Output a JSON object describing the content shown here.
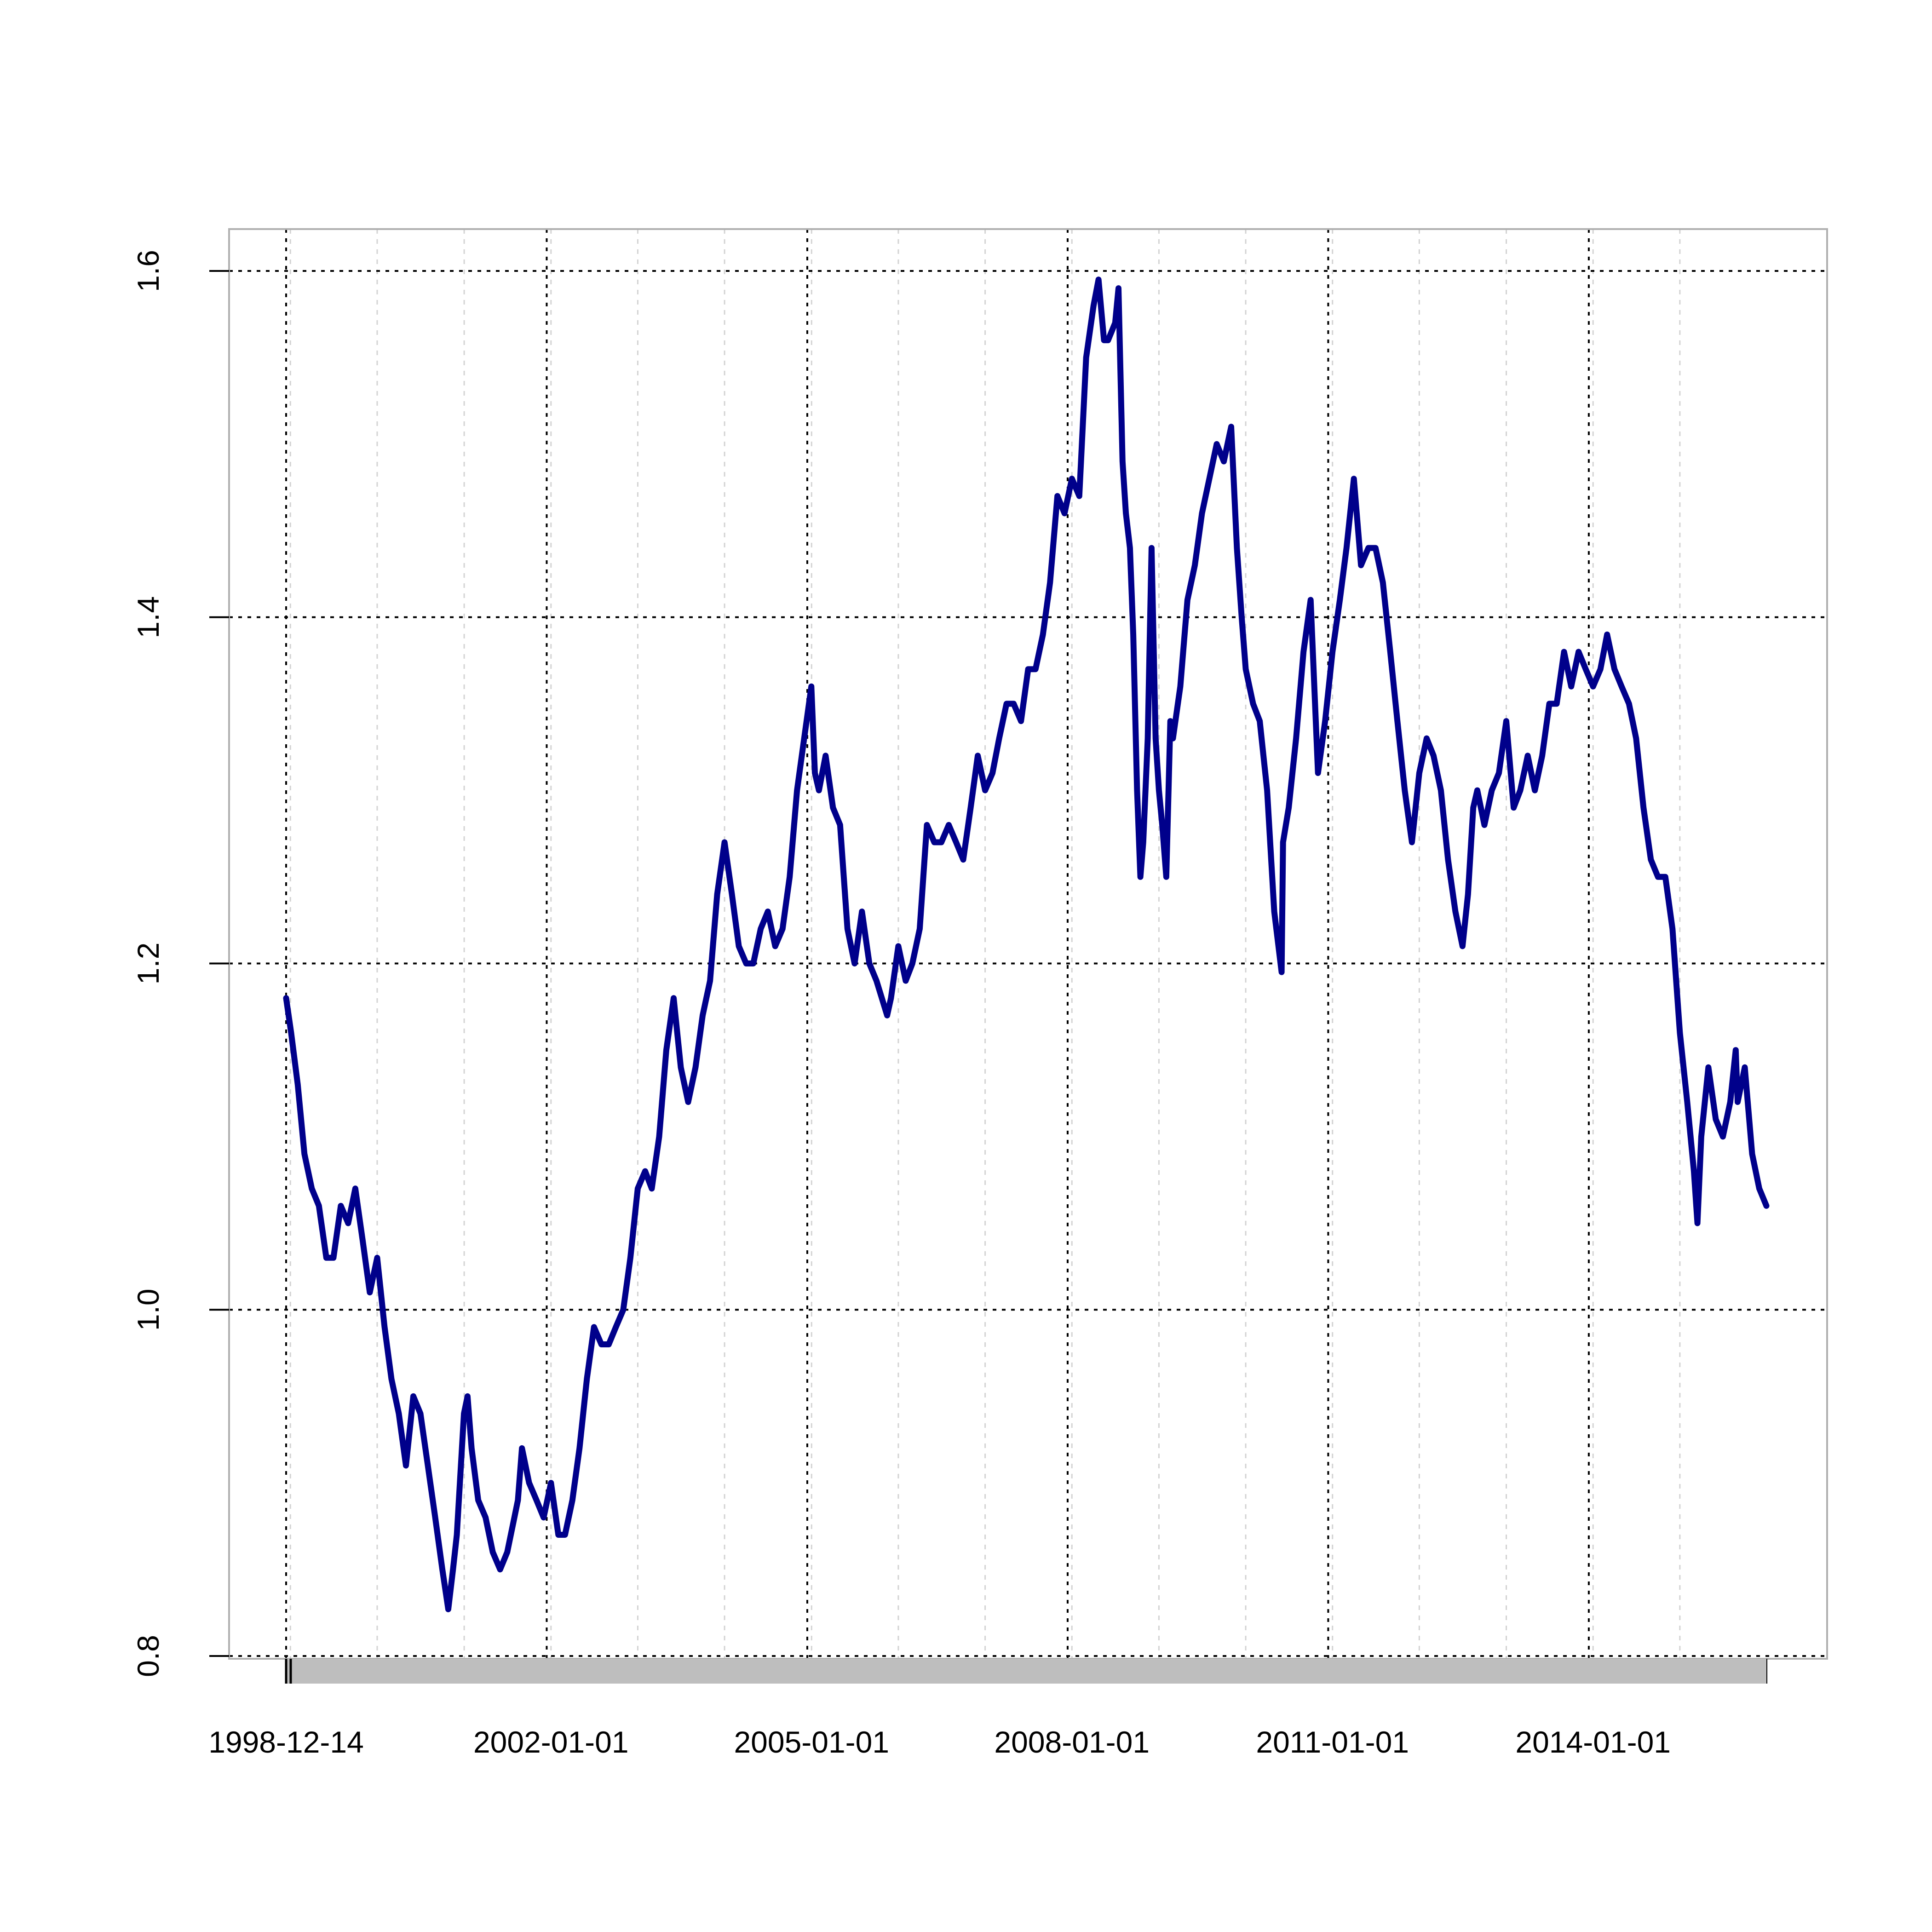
{
  "chart_data": {
    "type": "line",
    "title": "",
    "xlabel": "",
    "ylabel": "",
    "x_tick_labels": [
      "1998-12-14",
      "2002-01-01",
      "2005-01-01",
      "2008-01-01",
      "2011-01-01",
      "2014-01-01"
    ],
    "y_tick_labels": [
      "0.8",
      "1.0",
      "1.2",
      "1.4",
      "1.6"
    ],
    "ylim": [
      0.8,
      1.6
    ],
    "xlim": [
      "1998-12-14",
      "2015-12-31"
    ],
    "grid": true,
    "legend": "none",
    "series": [
      {
        "color": "#00008b",
        "x": [
          "1998-12-14",
          "1999-01-04",
          "1999-02-01",
          "1999-03-01",
          "1999-04-01",
          "1999-05-01",
          "1999-06-01",
          "1999-07-01",
          "1999-08-01",
          "1999-09-01",
          "1999-10-01",
          "1999-11-01",
          "1999-12-01",
          "2000-01-01",
          "2000-02-01",
          "2000-03-01",
          "2000-04-01",
          "2000-05-01",
          "2000-06-01",
          "2000-07-01",
          "2000-08-01",
          "2000-09-01",
          "2000-10-01",
          "2000-10-26",
          "2000-11-15",
          "2000-12-01",
          "2000-12-31",
          "2001-01-15",
          "2001-02-01",
          "2001-03-01",
          "2001-04-01",
          "2001-05-01",
          "2001-06-01",
          "2001-07-01",
          "2001-07-31",
          "2001-08-15",
          "2001-09-01",
          "2001-10-01",
          "2001-11-01",
          "2001-12-01",
          "2002-01-01",
          "2002-02-01",
          "2002-03-01",
          "2002-04-01",
          "2002-05-01",
          "2002-06-01",
          "2002-07-01",
          "2002-08-01",
          "2002-09-01",
          "2002-10-01",
          "2002-11-01",
          "2002-12-01",
          "2003-01-01",
          "2003-02-01",
          "2003-03-01",
          "2003-04-01",
          "2003-05-01",
          "2003-06-01",
          "2003-07-01",
          "2003-08-01",
          "2003-09-01",
          "2003-10-01",
          "2003-11-01",
          "2003-12-01",
          "2004-01-01",
          "2004-02-01",
          "2004-03-01",
          "2004-04-01",
          "2004-05-01",
          "2004-06-01",
          "2004-07-01",
          "2004-08-01",
          "2004-09-01",
          "2004-10-01",
          "2004-11-01",
          "2004-12-01",
          "2004-12-31",
          "2005-01-15",
          "2005-02-01",
          "2005-03-01",
          "2005-04-01",
          "2005-05-01",
          "2005-06-01",
          "2005-07-01",
          "2005-08-01",
          "2005-09-01",
          "2005-10-01",
          "2005-11-15",
          "2005-12-01",
          "2006-01-01",
          "2006-02-01",
          "2006-03-01",
          "2006-04-01",
          "2006-05-01",
          "2006-06-01",
          "2006-07-01",
          "2006-08-01",
          "2006-09-01",
          "2006-10-01",
          "2006-11-01",
          "2006-12-01",
          "2007-01-01",
          "2007-02-01",
          "2007-03-01",
          "2007-04-01",
          "2007-05-01",
          "2007-06-01",
          "2007-07-01",
          "2007-08-01",
          "2007-09-01",
          "2007-10-01",
          "2007-11-01",
          "2007-12-01",
          "2008-01-01",
          "2008-02-01",
          "2008-03-01",
          "2008-04-01",
          "2008-04-22",
          "2008-05-15",
          "2008-06-01",
          "2008-07-01",
          "2008-07-15",
          "2008-08-01",
          "2008-08-15",
          "2008-09-01",
          "2008-09-15",
          "2008-10-01",
          "2008-10-15",
          "2008-10-27",
          "2008-11-15",
          "2008-12-01",
          "2008-12-18",
          "2009-01-01",
          "2009-01-15",
          "2009-02-01",
          "2009-02-18",
          "2009-03-01",
          "2009-04-01",
          "2009-05-01",
          "2009-06-01",
          "2009-07-01",
          "2009-08-01",
          "2009-09-01",
          "2009-10-01",
          "2009-11-01",
          "2009-11-25",
          "2009-12-15",
          "2010-01-01",
          "2010-02-01",
          "2010-03-01",
          "2010-04-01",
          "2010-05-01",
          "2010-06-01",
          "2010-06-07",
          "2010-07-01",
          "2010-08-01",
          "2010-09-01",
          "2010-10-01",
          "2010-11-01",
          "2010-12-01",
          "2011-01-01",
          "2011-02-01",
          "2011-03-01",
          "2011-04-01",
          "2011-05-01",
          "2011-06-01",
          "2011-07-01",
          "2011-08-01",
          "2011-09-01",
          "2011-10-01",
          "2011-11-01",
          "2011-12-01",
          "2012-01-01",
          "2012-02-01",
          "2012-03-01",
          "2012-04-01",
          "2012-05-01",
          "2012-06-01",
          "2012-07-01",
          "2012-07-24",
          "2012-08-15",
          "2012-09-01",
          "2012-10-01",
          "2012-11-01",
          "2012-12-01",
          "2013-01-01",
          "2013-02-01",
          "2013-03-01",
          "2013-04-01",
          "2013-05-01",
          "2013-06-01",
          "2013-07-01",
          "2013-08-01",
          "2013-09-01",
          "2013-10-01",
          "2013-11-01",
          "2013-12-01",
          "2014-01-01",
          "2014-02-01",
          "2014-03-01",
          "2014-04-01",
          "2014-05-01",
          "2014-06-01",
          "2014-07-01",
          "2014-08-01",
          "2014-09-01",
          "2014-10-01",
          "2014-11-01",
          "2014-12-01",
          "2015-01-01",
          "2015-02-01",
          "2015-03-01",
          "2015-03-16",
          "2015-04-01",
          "2015-05-01",
          "2015-06-01",
          "2015-07-01",
          "2015-08-01",
          "2015-08-24",
          "2015-09-01",
          "2015-10-01",
          "2015-11-01",
          "2015-12-01",
          "2015-12-31"
        ],
        "y": [
          1.18,
          1.16,
          1.13,
          1.09,
          1.07,
          1.06,
          1.03,
          1.03,
          1.06,
          1.05,
          1.07,
          1.04,
          1.01,
          1.03,
          0.99,
          0.96,
          0.94,
          0.91,
          0.95,
          0.94,
          0.91,
          0.88,
          0.85,
          0.827,
          0.85,
          0.87,
          0.94,
          0.95,
          0.92,
          0.89,
          0.88,
          0.86,
          0.85,
          0.86,
          0.88,
          0.89,
          0.92,
          0.9,
          0.89,
          0.88,
          0.9,
          0.87,
          0.87,
          0.89,
          0.92,
          0.96,
          0.99,
          0.98,
          0.98,
          0.99,
          1.0,
          1.03,
          1.07,
          1.08,
          1.07,
          1.1,
          1.15,
          1.18,
          1.14,
          1.12,
          1.14,
          1.17,
          1.19,
          1.24,
          1.27,
          1.24,
          1.21,
          1.2,
          1.2,
          1.22,
          1.23,
          1.21,
          1.22,
          1.25,
          1.3,
          1.33,
          1.36,
          1.31,
          1.3,
          1.32,
          1.29,
          1.28,
          1.22,
          1.2,
          1.23,
          1.2,
          1.19,
          1.17,
          1.18,
          1.21,
          1.19,
          1.2,
          1.22,
          1.28,
          1.27,
          1.27,
          1.28,
          1.27,
          1.26,
          1.29,
          1.32,
          1.3,
          1.31,
          1.33,
          1.35,
          1.35,
          1.34,
          1.37,
          1.37,
          1.39,
          1.42,
          1.47,
          1.46,
          1.48,
          1.47,
          1.55,
          1.58,
          1.595,
          1.56,
          1.56,
          1.57,
          1.59,
          1.49,
          1.46,
          1.44,
          1.39,
          1.3,
          1.25,
          1.27,
          1.33,
          1.44,
          1.33,
          1.3,
          1.28,
          1.25,
          1.34,
          1.33,
          1.36,
          1.41,
          1.43,
          1.46,
          1.48,
          1.5,
          1.49,
          1.51,
          1.44,
          1.4,
          1.37,
          1.35,
          1.34,
          1.3,
          1.23,
          1.195,
          1.27,
          1.29,
          1.33,
          1.38,
          1.41,
          1.31,
          1.34,
          1.38,
          1.41,
          1.44,
          1.48,
          1.43,
          1.44,
          1.44,
          1.42,
          1.38,
          1.34,
          1.3,
          1.27,
          1.31,
          1.33,
          1.32,
          1.3,
          1.26,
          1.23,
          1.21,
          1.24,
          1.29,
          1.3,
          1.28,
          1.3,
          1.31,
          1.34,
          1.29,
          1.3,
          1.32,
          1.3,
          1.32,
          1.35,
          1.35,
          1.38,
          1.36,
          1.38,
          1.37,
          1.36,
          1.37,
          1.39,
          1.37,
          1.36,
          1.35,
          1.33,
          1.29,
          1.26,
          1.25,
          1.25,
          1.22,
          1.16,
          1.12,
          1.08,
          1.05,
          1.1,
          1.14,
          1.11,
          1.1,
          1.12,
          1.15,
          1.12,
          1.14,
          1.09,
          1.07,
          1.06
        ]
      }
    ]
  }
}
